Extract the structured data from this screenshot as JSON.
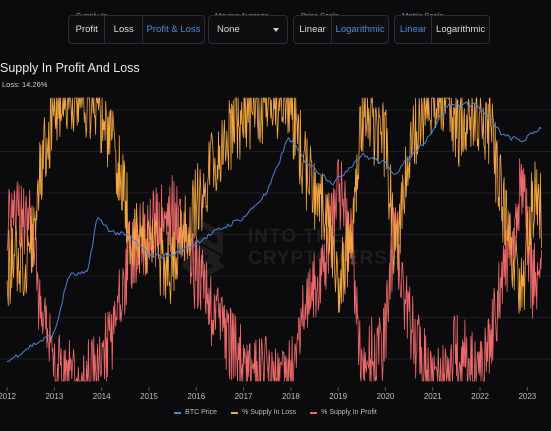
{
  "controls": {
    "supply_in": {
      "label": "Supply In",
      "options": [
        "Profit",
        "Loss",
        "Profit & Loss"
      ],
      "selected": "Profit & Loss"
    },
    "moving_average": {
      "label": "Moving Average",
      "value": "None"
    },
    "price_scale": {
      "label": "Price Scale",
      "options": [
        "Linear",
        "Logarithmic"
      ],
      "selected": "Logarithmic"
    },
    "metric_scale": {
      "label": "Metric Scale",
      "options": [
        "Linear",
        "Logarithmic"
      ],
      "selected": "Linear"
    }
  },
  "watermark": {
    "line1": "INTO THE",
    "line2": "CRYPTOVERSE"
  },
  "colors": {
    "btc": "#4f7fd6",
    "loss": "#f2a640",
    "profit": "#ee6a6a",
    "accent": "#4f88e0",
    "grid": "#1e1e22"
  },
  "chart_data": {
    "type": "line",
    "title": "Supply In Profit And Loss",
    "subtitle": "Loss: 14.26%",
    "x_ticks": [
      "2012",
      "2013",
      "2014",
      "2015",
      "2016",
      "2017",
      "2018",
      "2019",
      "2020",
      "2021",
      "2022",
      "2023"
    ],
    "grid": true,
    "legend_position": "bottom",
    "series": [
      {
        "name": "BTC Price",
        "color_key": "btc",
        "x": [
          2012.0,
          2012.5,
          2013.0,
          2013.3,
          2013.7,
          2013.9,
          2014.2,
          2014.6,
          2015.0,
          2015.5,
          2016.0,
          2016.5,
          2017.0,
          2017.5,
          2017.95,
          2018.3,
          2018.9,
          2019.5,
          2020.0,
          2020.2,
          2020.9,
          2021.3,
          2021.9,
          2022.5,
          2022.9,
          2023.3
        ],
        "y": [
          5,
          9,
          14,
          120,
          130,
          1000,
          600,
          500,
          250,
          250,
          400,
          650,
          1000,
          2500,
          19000,
          8000,
          3500,
          10000,
          7200,
          5000,
          19000,
          60000,
          65000,
          20000,
          16500,
          28000
        ]
      },
      {
        "name": "% Supply In Loss",
        "color_key": "loss",
        "x": [
          2012.0,
          2012.5,
          2012.7,
          2013.0,
          2013.2,
          2013.9,
          2014.3,
          2014.6,
          2015.0,
          2015.5,
          2016.0,
          2016.4,
          2016.9,
          2017.2,
          2017.95,
          2018.3,
          2018.8,
          2019.0,
          2019.3,
          2019.5,
          2020.0,
          2020.2,
          2020.5,
          2020.8,
          2021.3,
          2021.5,
          2021.9,
          2022.2,
          2022.5,
          2022.9,
          2023.1,
          2023.3
        ],
        "y": [
          40,
          45,
          75,
          95,
          100,
          98,
          80,
          55,
          48,
          40,
          62,
          78,
          92,
          97,
          100,
          75,
          55,
          30,
          55,
          95,
          85,
          45,
          80,
          95,
          100,
          88,
          97,
          90,
          60,
          30,
          65,
          60
        ]
      },
      {
        "name": "% Supply In Profit",
        "color_key": "profit",
        "x": [
          2012.0,
          2012.5,
          2012.7,
          2013.0,
          2013.2,
          2013.9,
          2014.3,
          2014.6,
          2015.0,
          2015.5,
          2016.0,
          2016.4,
          2016.9,
          2017.2,
          2017.95,
          2018.3,
          2018.8,
          2019.0,
          2019.3,
          2019.5,
          2020.0,
          2020.2,
          2020.5,
          2020.8,
          2021.3,
          2021.5,
          2021.9,
          2022.2,
          2022.5,
          2022.9,
          2023.1,
          2023.3
        ],
        "y": [
          60,
          55,
          25,
          5,
          0,
          2,
          20,
          45,
          52,
          60,
          38,
          22,
          8,
          3,
          0,
          25,
          45,
          70,
          45,
          5,
          15,
          55,
          20,
          5,
          0,
          12,
          3,
          10,
          40,
          70,
          35,
          40
        ]
      }
    ]
  }
}
